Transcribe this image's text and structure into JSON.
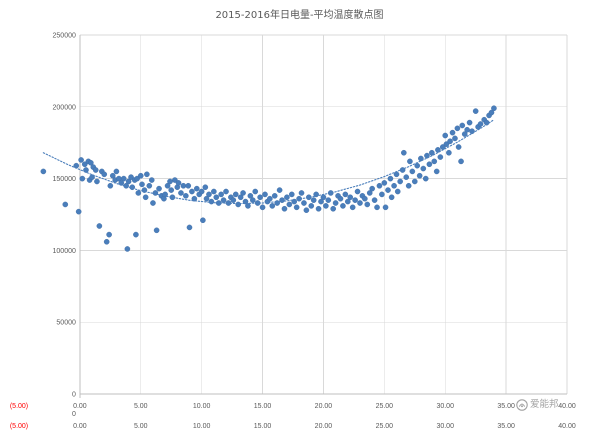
{
  "chart_data": {
    "type": "scatter",
    "title": "2015-2016年日电量-平均温度散点图",
    "xlim": [
      -5,
      40
    ],
    "ylim": [
      0,
      250000
    ],
    "grid": true,
    "x_axis": {
      "ticks": [
        {
          "value": -5,
          "label": "(5.00)"
        },
        {
          "value": 0,
          "label": "0.00"
        },
        {
          "value": 5,
          "label": "5.00"
        },
        {
          "value": 10,
          "label": "10.00"
        },
        {
          "value": 15,
          "label": "15.00"
        },
        {
          "value": 20,
          "label": "20.00"
        },
        {
          "value": 25,
          "label": "25.00"
        },
        {
          "value": 30,
          "label": "30.00"
        },
        {
          "value": 35,
          "label": "35.00"
        },
        {
          "value": 40,
          "label": "40.00"
        }
      ]
    },
    "y_axis": {
      "ticks": [
        {
          "value": 0,
          "label": "0"
        },
        {
          "value": 50000,
          "label": "50000"
        },
        {
          "value": 100000,
          "label": "100000"
        },
        {
          "value": 150000,
          "label": "150000"
        },
        {
          "value": 200000,
          "label": "200000"
        },
        {
          "value": 250000,
          "label": "250000"
        }
      ]
    },
    "secondary_axes": {
      "x_ticks": [
        {
          "value": -5,
          "label": "(5.00)"
        },
        {
          "value": 0,
          "label": "0.00"
        },
        {
          "value": 5,
          "label": "5.00"
        },
        {
          "value": 10,
          "label": "10.00"
        },
        {
          "value": 15,
          "label": "15.00"
        },
        {
          "value": 20,
          "label": "20.00"
        },
        {
          "value": 25,
          "label": "25.00"
        },
        {
          "value": 30,
          "label": "30.00"
        },
        {
          "value": 35,
          "label": "35.00"
        },
        {
          "value": 40,
          "label": "40.00"
        }
      ],
      "y_ticks": [
        {
          "value": 0,
          "label": "0"
        }
      ]
    },
    "negative_label_color": "#ff0000",
    "series": [
      {
        "color": "#4a7ebb",
        "points": [
          [
            -3.0,
            155000
          ],
          [
            -1.2,
            132000
          ],
          [
            -0.3,
            159000
          ],
          [
            -0.1,
            127000
          ],
          [
            0.1,
            163000
          ],
          [
            0.2,
            150000
          ],
          [
            0.4,
            160000
          ],
          [
            0.5,
            156000
          ],
          [
            0.7,
            162000
          ],
          [
            0.8,
            149000
          ],
          [
            0.9,
            161000
          ],
          [
            1.0,
            151000
          ],
          [
            1.1,
            158000
          ],
          [
            1.3,
            156000
          ],
          [
            1.4,
            148000
          ],
          [
            1.6,
            117000
          ],
          [
            1.8,
            155000
          ],
          [
            2.0,
            153000
          ],
          [
            2.2,
            106000
          ],
          [
            2.4,
            111000
          ],
          [
            2.5,
            145000
          ],
          [
            2.7,
            152000
          ],
          [
            2.9,
            149000
          ],
          [
            3.0,
            155000
          ],
          [
            3.2,
            150000
          ],
          [
            3.4,
            147000
          ],
          [
            3.6,
            150000
          ],
          [
            3.8,
            145000
          ],
          [
            3.9,
            101000
          ],
          [
            4.0,
            148000
          ],
          [
            4.2,
            151000
          ],
          [
            4.3,
            144000
          ],
          [
            4.5,
            149000
          ],
          [
            4.6,
            111000
          ],
          [
            4.7,
            150000
          ],
          [
            4.8,
            140000
          ],
          [
            5.0,
            152000
          ],
          [
            5.1,
            146000
          ],
          [
            5.3,
            142000
          ],
          [
            5.4,
            137000
          ],
          [
            5.5,
            153000
          ],
          [
            5.7,
            145000
          ],
          [
            5.9,
            149000
          ],
          [
            6.0,
            133000
          ],
          [
            6.2,
            140000
          ],
          [
            6.3,
            114000
          ],
          [
            6.5,
            143000
          ],
          [
            6.7,
            138000
          ],
          [
            6.9,
            136000
          ],
          [
            7.0,
            139000
          ],
          [
            7.2,
            145000
          ],
          [
            7.4,
            148000
          ],
          [
            7.5,
            142000
          ],
          [
            7.6,
            137000
          ],
          [
            7.8,
            149000
          ],
          [
            8.0,
            144000
          ],
          [
            8.1,
            147000
          ],
          [
            8.3,
            140000
          ],
          [
            8.5,
            145000
          ],
          [
            8.7,
            138000
          ],
          [
            8.9,
            145000
          ],
          [
            9.0,
            116000
          ],
          [
            9.2,
            141000
          ],
          [
            9.4,
            136000
          ],
          [
            9.6,
            143000
          ],
          [
            9.8,
            139000
          ],
          [
            10.0,
            141000
          ],
          [
            10.1,
            121000
          ],
          [
            10.3,
            144000
          ],
          [
            10.4,
            136000
          ],
          [
            10.6,
            139000
          ],
          [
            10.8,
            134000
          ],
          [
            11.0,
            141000
          ],
          [
            11.2,
            137000
          ],
          [
            11.4,
            133000
          ],
          [
            11.6,
            139000
          ],
          [
            11.8,
            135000
          ],
          [
            12.0,
            141000
          ],
          [
            12.2,
            133000
          ],
          [
            12.4,
            137000
          ],
          [
            12.6,
            135000
          ],
          [
            12.8,
            139000
          ],
          [
            13.0,
            132000
          ],
          [
            13.2,
            137000
          ],
          [
            13.4,
            140000
          ],
          [
            13.6,
            134000
          ],
          [
            13.8,
            131000
          ],
          [
            14.0,
            138000
          ],
          [
            14.2,
            135000
          ],
          [
            14.4,
            141000
          ],
          [
            14.6,
            133000
          ],
          [
            14.8,
            137000
          ],
          [
            15.0,
            130000
          ],
          [
            15.2,
            139000
          ],
          [
            15.4,
            134000
          ],
          [
            15.6,
            136000
          ],
          [
            15.8,
            131000
          ],
          [
            16.0,
            138000
          ],
          [
            16.2,
            133000
          ],
          [
            16.4,
            142000
          ],
          [
            16.6,
            135000
          ],
          [
            16.8,
            129000
          ],
          [
            17.0,
            137000
          ],
          [
            17.2,
            132000
          ],
          [
            17.4,
            139000
          ],
          [
            17.6,
            134000
          ],
          [
            17.8,
            130000
          ],
          [
            18.0,
            136000
          ],
          [
            18.2,
            140000
          ],
          [
            18.4,
            133000
          ],
          [
            18.6,
            128000
          ],
          [
            18.8,
            137000
          ],
          [
            19.0,
            131000
          ],
          [
            19.2,
            135000
          ],
          [
            19.4,
            139000
          ],
          [
            19.6,
            129000
          ],
          [
            19.8,
            134000
          ],
          [
            20.0,
            137000
          ],
          [
            20.2,
            131000
          ],
          [
            20.4,
            135000
          ],
          [
            20.6,
            140000
          ],
          [
            20.8,
            129000
          ],
          [
            21.0,
            133000
          ],
          [
            21.2,
            138000
          ],
          [
            21.4,
            136000
          ],
          [
            21.6,
            131000
          ],
          [
            21.8,
            139000
          ],
          [
            22.0,
            134000
          ],
          [
            22.2,
            137000
          ],
          [
            22.4,
            130000
          ],
          [
            22.6,
            135000
          ],
          [
            22.8,
            141000
          ],
          [
            23.0,
            133000
          ],
          [
            23.2,
            138000
          ],
          [
            23.4,
            136000
          ],
          [
            23.6,
            132000
          ],
          [
            23.8,
            140000
          ],
          [
            24.0,
            143000
          ],
          [
            24.2,
            135000
          ],
          [
            24.4,
            130000
          ],
          [
            24.6,
            145000
          ],
          [
            24.8,
            139000
          ],
          [
            25.0,
            147000
          ],
          [
            25.1,
            130000
          ],
          [
            25.3,
            142000
          ],
          [
            25.5,
            150000
          ],
          [
            25.6,
            137000
          ],
          [
            25.8,
            145000
          ],
          [
            26.0,
            153000
          ],
          [
            26.1,
            141000
          ],
          [
            26.3,
            148000
          ],
          [
            26.5,
            156000
          ],
          [
            26.6,
            168000
          ],
          [
            26.8,
            151000
          ],
          [
            27.0,
            145000
          ],
          [
            27.1,
            162000
          ],
          [
            27.3,
            155000
          ],
          [
            27.5,
            148000
          ],
          [
            27.7,
            159000
          ],
          [
            27.9,
            152000
          ],
          [
            28.0,
            164000
          ],
          [
            28.2,
            157000
          ],
          [
            28.4,
            150000
          ],
          [
            28.5,
            166000
          ],
          [
            28.7,
            160000
          ],
          [
            28.9,
            168000
          ],
          [
            29.1,
            162000
          ],
          [
            29.3,
            155000
          ],
          [
            29.4,
            170000
          ],
          [
            29.6,
            165000
          ],
          [
            29.8,
            172000
          ],
          [
            30.0,
            180000
          ],
          [
            30.1,
            174000
          ],
          [
            30.3,
            168000
          ],
          [
            30.4,
            176000
          ],
          [
            30.6,
            182000
          ],
          [
            30.8,
            178000
          ],
          [
            31.0,
            185000
          ],
          [
            31.1,
            172000
          ],
          [
            31.3,
            162000
          ],
          [
            31.4,
            187000
          ],
          [
            31.6,
            181000
          ],
          [
            31.8,
            184000
          ],
          [
            32.0,
            189000
          ],
          [
            32.2,
            183000
          ],
          [
            32.5,
            197000
          ],
          [
            32.7,
            186000
          ],
          [
            32.9,
            188000
          ],
          [
            33.2,
            191000
          ],
          [
            33.4,
            189000
          ],
          [
            33.6,
            194000
          ],
          [
            33.8,
            196000
          ],
          [
            34.0,
            199000
          ]
        ]
      }
    ],
    "trendline": {
      "color": "#4a7ebb",
      "points": [
        [
          -3,
          168000
        ],
        [
          -1,
          159800
        ],
        [
          1,
          152700
        ],
        [
          3,
          146600
        ],
        [
          5,
          141600
        ],
        [
          7,
          137800
        ],
        [
          9,
          134900
        ],
        [
          11,
          133200
        ],
        [
          13,
          132600
        ],
        [
          15,
          133000
        ],
        [
          17,
          134500
        ],
        [
          19,
          137100
        ],
        [
          21,
          140800
        ],
        [
          23,
          145500
        ],
        [
          25,
          151400
        ],
        [
          27,
          158300
        ],
        [
          29,
          166300
        ],
        [
          31,
          175400
        ],
        [
          33,
          185500
        ],
        [
          34,
          191000
        ]
      ]
    }
  },
  "watermark": {
    "text": "爱能邦",
    "icon": "watermark-logo-icon"
  }
}
